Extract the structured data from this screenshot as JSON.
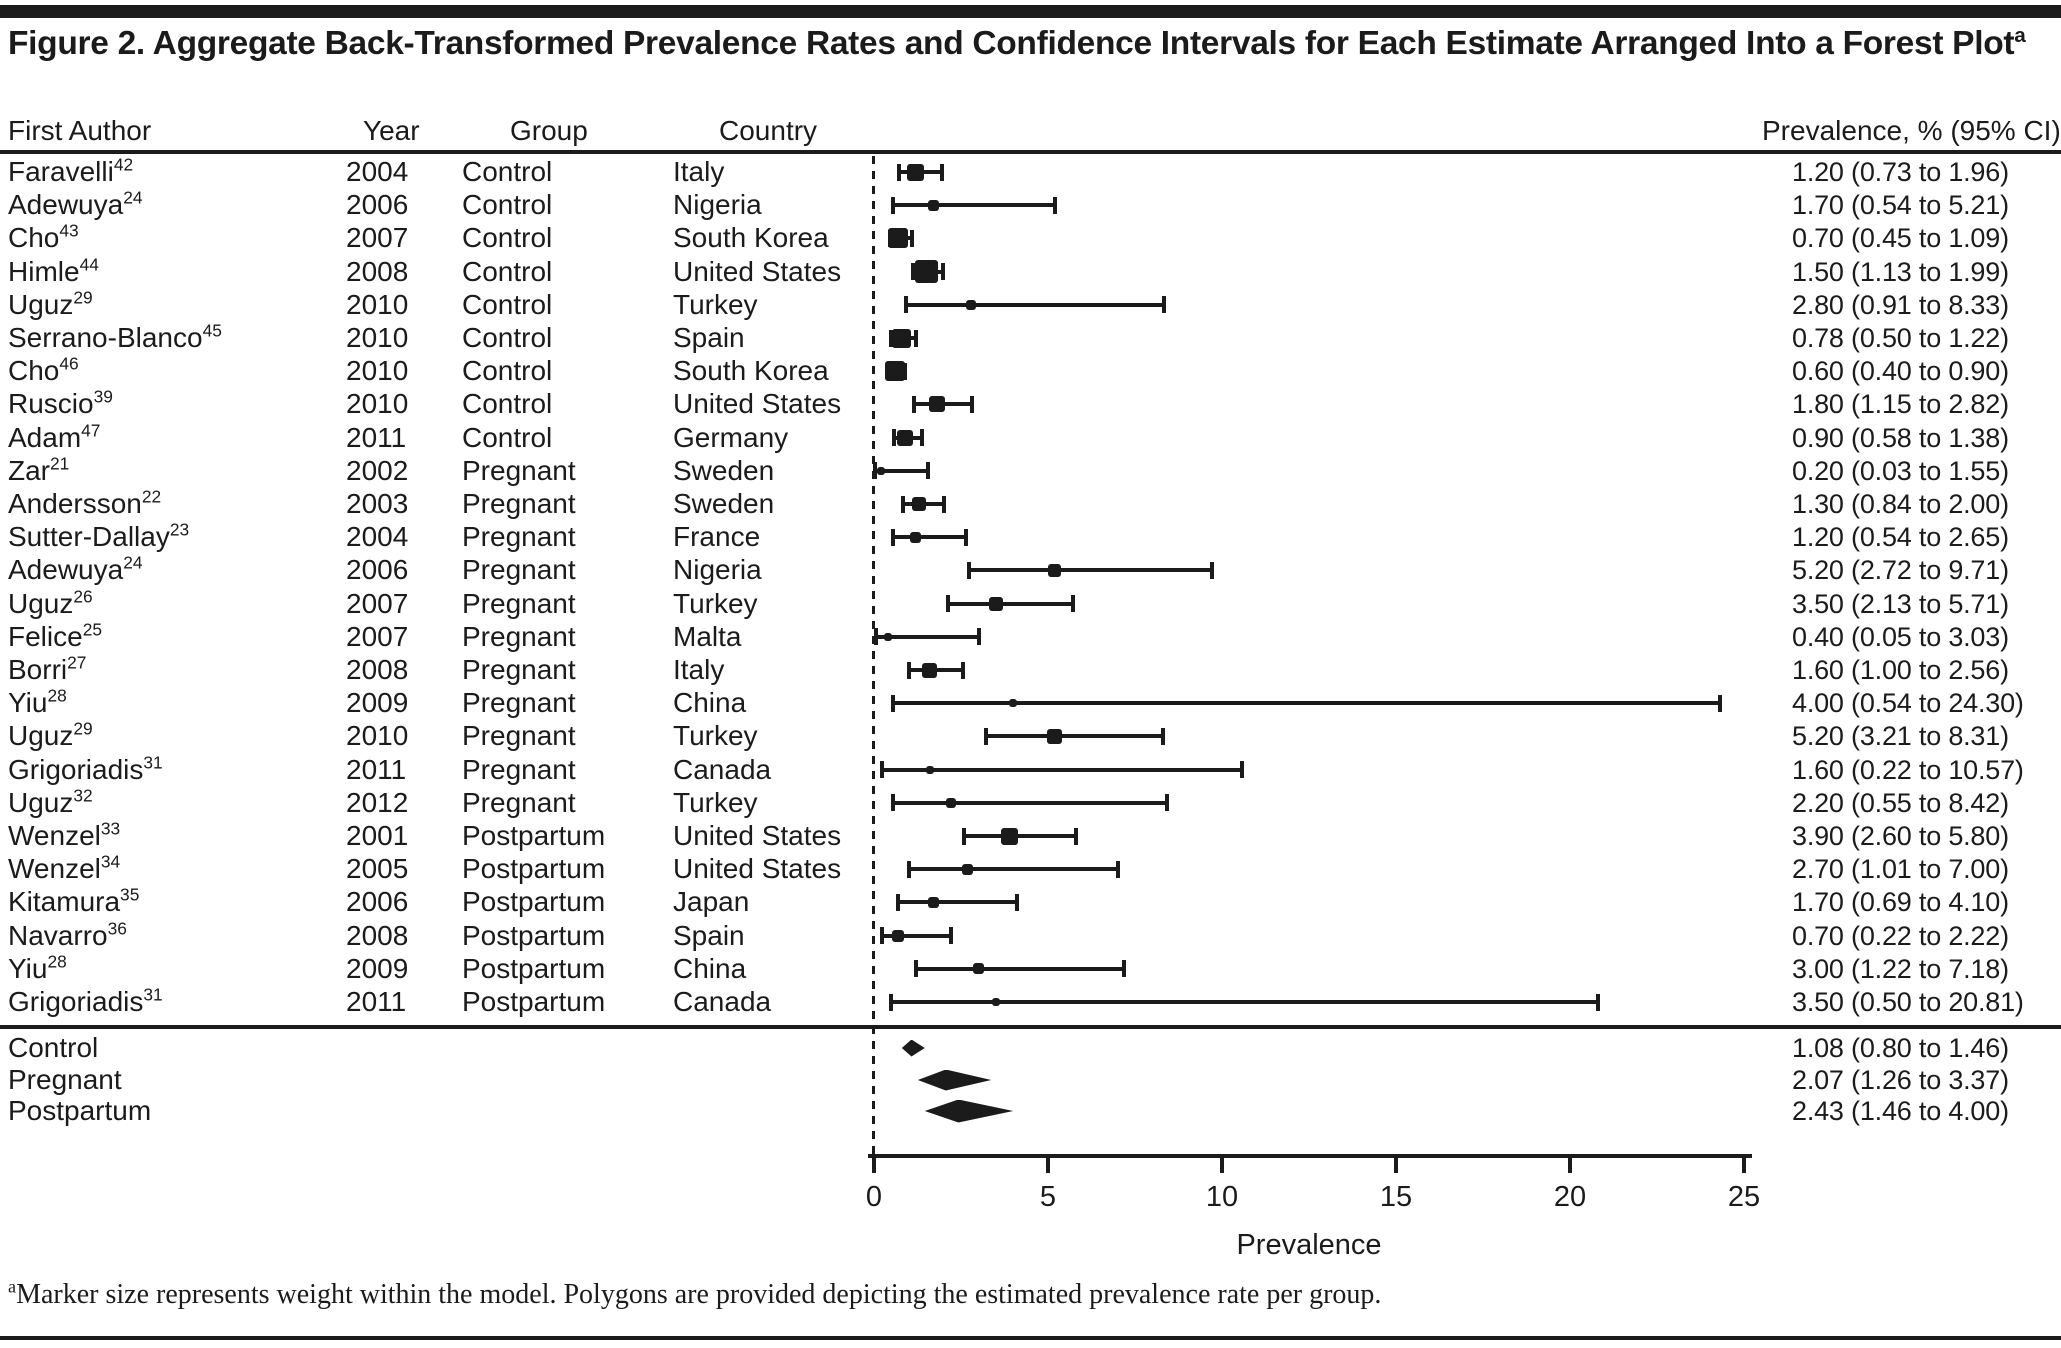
{
  "figure": {
    "title": "Figure 2. Aggregate Back-Transformed Prevalence Rates and Confidence Intervals for Each Estimate Arranged Into a Forest Plot",
    "title_sup": "a",
    "footnote_sup": "a",
    "footnote": "Marker size represents weight within the model. Polygons are provided depicting the estimated prevalence rate per group."
  },
  "columns": {
    "author": "First Author",
    "year": "Year",
    "group": "Group",
    "country": "Country",
    "prevalence": "Prevalence, % (95% CI)"
  },
  "chart_data": {
    "type": "forest",
    "xlabel": "Prevalence",
    "x_ticks": [
      0,
      5,
      10,
      15,
      20,
      25
    ],
    "xlim": [
      0,
      25
    ],
    "reference_line_x": 0,
    "grid": false,
    "marker_note": "marker size encodes model weight",
    "studies": [
      {
        "author": "Faravelli",
        "ref": "42",
        "year": "2004",
        "group": "Control",
        "country": "Italy",
        "estimate": 1.2,
        "ci_low": 0.73,
        "ci_high": 1.96,
        "label": "1.20 (0.73 to 1.96)",
        "size": 17
      },
      {
        "author": "Adewuya",
        "ref": "24",
        "year": "2006",
        "group": "Control",
        "country": "Nigeria",
        "estimate": 1.7,
        "ci_low": 0.54,
        "ci_high": 5.21,
        "label": "1.70 (0.54 to 5.21)",
        "size": 11
      },
      {
        "author": "Cho",
        "ref": "43",
        "year": "2007",
        "group": "Control",
        "country": "South Korea",
        "estimate": 0.7,
        "ci_low": 0.45,
        "ci_high": 1.09,
        "label": "0.70 (0.45 to 1.09)",
        "size": 20
      },
      {
        "author": "Himle",
        "ref": "44",
        "year": "2008",
        "group": "Control",
        "country": "United States",
        "estimate": 1.5,
        "ci_low": 1.13,
        "ci_high": 1.99,
        "label": "1.50 (1.13 to 1.99)",
        "size": 23
      },
      {
        "author": "Uguz",
        "ref": "29",
        "year": "2010",
        "group": "Control",
        "country": "Turkey",
        "estimate": 2.8,
        "ci_low": 0.91,
        "ci_high": 8.33,
        "label": "2.80 (0.91 to 8.33)",
        "size": 10
      },
      {
        "author": "Serrano-Blanco",
        "ref": "45",
        "year": "2010",
        "group": "Control",
        "country": "Spain",
        "estimate": 0.78,
        "ci_low": 0.5,
        "ci_high": 1.22,
        "label": "0.78 (0.50 to 1.22)",
        "size": 19
      },
      {
        "author": "Cho",
        "ref": "46",
        "year": "2010",
        "group": "Control",
        "country": "South Korea",
        "estimate": 0.6,
        "ci_low": 0.4,
        "ci_high": 0.9,
        "label": "0.60 (0.40 to 0.90)",
        "size": 20
      },
      {
        "author": "Ruscio",
        "ref": "39",
        "year": "2010",
        "group": "Control",
        "country": "United States",
        "estimate": 1.8,
        "ci_low": 1.15,
        "ci_high": 2.82,
        "label": "1.80 (1.15 to 2.82)",
        "size": 16
      },
      {
        "author": "Adam",
        "ref": "47",
        "year": "2011",
        "group": "Control",
        "country": "Germany",
        "estimate": 0.9,
        "ci_low": 0.58,
        "ci_high": 1.38,
        "label": "0.90 (0.58 to 1.38)",
        "size": 16
      },
      {
        "author": "Zar",
        "ref": "21",
        "year": "2002",
        "group": "Pregnant",
        "country": "Sweden",
        "estimate": 0.2,
        "ci_low": 0.03,
        "ci_high": 1.55,
        "label": "0.20 (0.03 to 1.55)",
        "size": 8
      },
      {
        "author": "Andersson",
        "ref": "22",
        "year": "2003",
        "group": "Pregnant",
        "country": "Sweden",
        "estimate": 1.3,
        "ci_low": 0.84,
        "ci_high": 2.0,
        "label": "1.30 (0.84 to 2.00)",
        "size": 14
      },
      {
        "author": "Sutter-Dallay",
        "ref": "23",
        "year": "2004",
        "group": "Pregnant",
        "country": "France",
        "estimate": 1.2,
        "ci_low": 0.54,
        "ci_high": 2.65,
        "label": "1.20 (0.54 to 2.65)",
        "size": 11
      },
      {
        "author": "Adewuya",
        "ref": "24",
        "year": "2006",
        "group": "Pregnant",
        "country": "Nigeria",
        "estimate": 5.2,
        "ci_low": 2.72,
        "ci_high": 9.71,
        "label": "5.20 (2.72 to 9.71)",
        "size": 13
      },
      {
        "author": "Uguz",
        "ref": "26",
        "year": "2007",
        "group": "Pregnant",
        "country": "Turkey",
        "estimate": 3.5,
        "ci_low": 2.13,
        "ci_high": 5.71,
        "label": "3.50 (2.13 to 5.71)",
        "size": 14
      },
      {
        "author": "Felice",
        "ref": "25",
        "year": "2007",
        "group": "Pregnant",
        "country": "Malta",
        "estimate": 0.4,
        "ci_low": 0.05,
        "ci_high": 3.03,
        "label": "0.40 (0.05 to 3.03)",
        "size": 8
      },
      {
        "author": "Borri",
        "ref": "27",
        "year": "2008",
        "group": "Pregnant",
        "country": "Italy",
        "estimate": 1.6,
        "ci_low": 1.0,
        "ci_high": 2.56,
        "label": "1.60 (1.00 to 2.56)",
        "size": 15
      },
      {
        "author": "Yiu",
        "ref": "28",
        "year": "2009",
        "group": "Pregnant",
        "country": "China",
        "estimate": 4.0,
        "ci_low": 0.54,
        "ci_high": 24.3,
        "label": "4.00 (0.54 to 24.30)",
        "size": 8
      },
      {
        "author": "Uguz",
        "ref": "29",
        "year": "2010",
        "group": "Pregnant",
        "country": "Turkey",
        "estimate": 5.2,
        "ci_low": 3.21,
        "ci_high": 8.31,
        "label": "5.20 (3.21 to 8.31)",
        "size": 15
      },
      {
        "author": "Grigoriadis",
        "ref": "31",
        "year": "2011",
        "group": "Pregnant",
        "country": "Canada",
        "estimate": 1.6,
        "ci_low": 0.22,
        "ci_high": 10.57,
        "label": "1.60 (0.22 to 10.57)",
        "size": 8
      },
      {
        "author": "Uguz",
        "ref": "32",
        "year": "2012",
        "group": "Pregnant",
        "country": "Turkey",
        "estimate": 2.2,
        "ci_low": 0.55,
        "ci_high": 8.42,
        "label": "2.20 (0.55 to 8.42)",
        "size": 10
      },
      {
        "author": "Wenzel",
        "ref": "33",
        "year": "2001",
        "group": "Postpartum",
        "country": "United States",
        "estimate": 3.9,
        "ci_low": 2.6,
        "ci_high": 5.8,
        "label": "3.90 (2.60 to 5.80)",
        "size": 17
      },
      {
        "author": "Wenzel",
        "ref": "34",
        "year": "2005",
        "group": "Postpartum",
        "country": "United States",
        "estimate": 2.7,
        "ci_low": 1.01,
        "ci_high": 7.0,
        "label": "2.70 (1.01 to 7.00)",
        "size": 11
      },
      {
        "author": "Kitamura",
        "ref": "35",
        "year": "2006",
        "group": "Postpartum",
        "country": "Japan",
        "estimate": 1.7,
        "ci_low": 0.69,
        "ci_high": 4.1,
        "label": "1.70 (0.69 to 4.10)",
        "size": 11
      },
      {
        "author": "Navarro",
        "ref": "36",
        "year": "2008",
        "group": "Postpartum",
        "country": "Spain",
        "estimate": 0.7,
        "ci_low": 0.22,
        "ci_high": 2.22,
        "label": "0.70 (0.22 to 2.22)",
        "size": 12
      },
      {
        "author": "Yiu",
        "ref": "28",
        "year": "2009",
        "group": "Postpartum",
        "country": "China",
        "estimate": 3.0,
        "ci_low": 1.22,
        "ci_high": 7.18,
        "label": "3.00 (1.22 to 7.18)",
        "size": 11
      },
      {
        "author": "Grigoriadis",
        "ref": "31",
        "year": "2011",
        "group": "Postpartum",
        "country": "Canada",
        "estimate": 3.5,
        "ci_low": 0.5,
        "ci_high": 20.81,
        "label": "3.50 (0.50 to 20.81)",
        "size": 8
      }
    ],
    "summaries": [
      {
        "group": "Control",
        "estimate": 1.08,
        "ci_low": 0.8,
        "ci_high": 1.46,
        "label": "1.08 (0.80 to 1.46)",
        "height": 17
      },
      {
        "group": "Pregnant",
        "estimate": 2.07,
        "ci_low": 1.26,
        "ci_high": 3.37,
        "label": "2.07 (1.26 to 3.37)",
        "height": 21
      },
      {
        "group": "Postpartum",
        "estimate": 2.43,
        "ci_low": 1.46,
        "ci_high": 4.0,
        "label": "2.43 (1.46 to 4.00)",
        "height": 23
      }
    ]
  },
  "ink_color": "#1b1b1b"
}
